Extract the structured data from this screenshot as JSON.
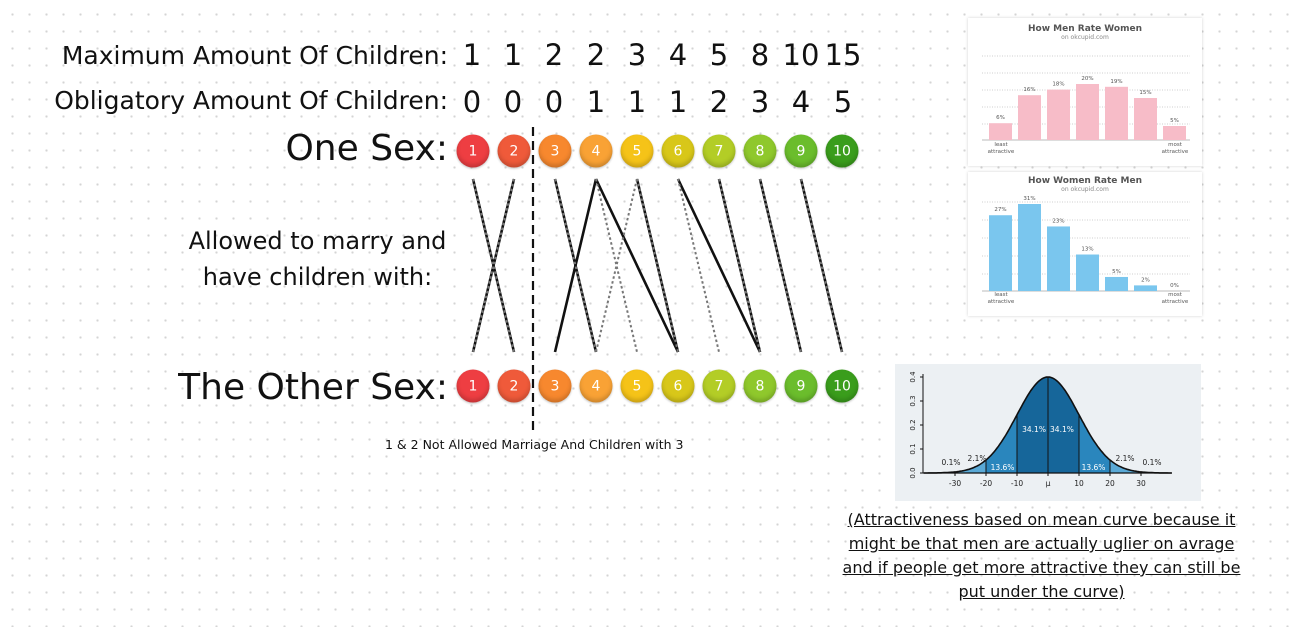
{
  "rows": {
    "max_label": "Maximum Amount Of Children:",
    "obligatory_label": "Obligatory Amount Of Children:",
    "one_sex_label": "One Sex:",
    "other_sex_label": "The Other Sex:"
  },
  "max_children": [
    "1",
    "1",
    "2",
    "2",
    "3",
    "4",
    "5",
    "8",
    "10",
    "15"
  ],
  "obligatory_children": [
    "0",
    "0",
    "0",
    "1",
    "1",
    "1",
    "2",
    "3",
    "4",
    "5"
  ],
  "ratings": [
    {
      "label": "1",
      "color": "#ee3e42"
    },
    {
      "label": "2",
      "color": "#ef5a3a"
    },
    {
      "label": "3",
      "color": "#f7882e"
    },
    {
      "label": "4",
      "color": "#f9a235"
    },
    {
      "label": "5",
      "color": "#f5c318"
    },
    {
      "label": "6",
      "color": "#d8c719"
    },
    {
      "label": "7",
      "color": "#b3cd26"
    },
    {
      "label": "8",
      "color": "#8fc82c"
    },
    {
      "label": "9",
      "color": "#6bbd2c"
    },
    {
      "label": "10",
      "color": "#3a9d1c"
    }
  ],
  "allowed_text": [
    "Allowed to marry and",
    "have children with:"
  ],
  "connections_solid": [
    [
      1,
      2
    ],
    [
      2,
      1
    ],
    [
      3,
      4
    ],
    [
      4,
      3
    ],
    [
      4,
      6
    ],
    [
      5,
      6
    ],
    [
      6,
      8
    ],
    [
      7,
      8
    ],
    [
      8,
      9
    ],
    [
      9,
      10
    ]
  ],
  "connections_dotted": [
    [
      1,
      2
    ],
    [
      2,
      1
    ],
    [
      3,
      4
    ],
    [
      4,
      5
    ],
    [
      5,
      4
    ],
    [
      5,
      6
    ],
    [
      6,
      7
    ],
    [
      7,
      8
    ],
    [
      8,
      9
    ],
    [
      9,
      10
    ]
  ],
  "footnote": "1 & 2 Not Allowed Marriage And Children with 3",
  "okc_women": {
    "title": "How Men Rate Women",
    "subtitle": "on okcupid.com",
    "values": [
      6,
      16,
      18,
      20,
      19,
      15,
      5
    ],
    "labels": [
      "6%",
      "16%",
      "18%",
      "20%",
      "19%",
      "15%",
      "5%"
    ],
    "color": "#f7bcc8",
    "least": [
      "least",
      "attractive"
    ],
    "most": [
      "most",
      "attractive"
    ]
  },
  "okc_men": {
    "title": "How Women Rate Men",
    "subtitle": "on okcupid.com",
    "values": [
      27,
      31,
      23,
      13,
      5,
      2,
      0
    ],
    "labels": [
      "27%",
      "31%",
      "23%",
      "13%",
      "5%",
      "2%",
      "0%"
    ],
    "color": "#7ac6ee",
    "least": [
      "least",
      "attractive"
    ],
    "most": [
      "most",
      "attractive"
    ]
  },
  "normal_curve": {
    "y_ticks": [
      "0.0",
      "0.1",
      "0.2",
      "0.3",
      "0.4"
    ],
    "x_ticks": [
      "-30",
      "-20",
      "-10",
      "μ",
      "10",
      "20",
      "30"
    ],
    "region_labels": [
      "0.1%",
      "2.1%",
      "13.6%",
      "34.1%",
      "34.1%",
      "13.6%",
      "2.1%",
      "0.1%"
    ],
    "fill_dark": "#16669a",
    "fill_mid": "#2a86bd",
    "fill_light": "#5aa9d6"
  },
  "caption": [
    "(Attractiveness based on mean curve because it",
    "might be that men are actually uglier on avrage",
    "and if people get more attractive they can still be",
    "put under the curve)"
  ]
}
